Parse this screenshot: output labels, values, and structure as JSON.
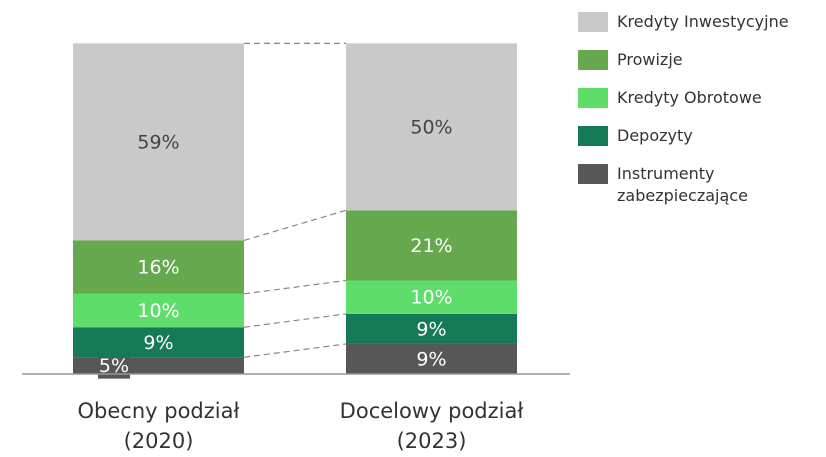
{
  "chart_data": {
    "type": "stacked_bar_100",
    "categories": [
      "Obecny podział (2020)",
      "Docelowy podział (2023)"
    ],
    "series": [
      {
        "name": "Kredyty Inwestycyjne",
        "color": "#c9c9c9",
        "values": [
          59,
          50
        ],
        "value_labels": [
          "59%",
          "50%"
        ]
      },
      {
        "name": "Prowizje",
        "color": "#66a84d",
        "values": [
          16,
          21
        ],
        "value_labels": [
          "16%",
          "21%"
        ]
      },
      {
        "name": "Kredyty Obrotowe",
        "color": "#5fdd6b",
        "values": [
          10,
          10
        ],
        "value_labels": [
          "10%",
          "10%"
        ]
      },
      {
        "name": "Depozyty",
        "color": "#177a56",
        "values": [
          9,
          9
        ],
        "value_labels": [
          "9%",
          "9%"
        ]
      },
      {
        "name": "Instrumenty zabezpieczające",
        "color": "#575757",
        "values": [
          5,
          9
        ],
        "value_labels": [
          "5%",
          "9%"
        ]
      }
    ],
    "ylim": [
      0,
      100
    ],
    "legend": "right"
  }
}
